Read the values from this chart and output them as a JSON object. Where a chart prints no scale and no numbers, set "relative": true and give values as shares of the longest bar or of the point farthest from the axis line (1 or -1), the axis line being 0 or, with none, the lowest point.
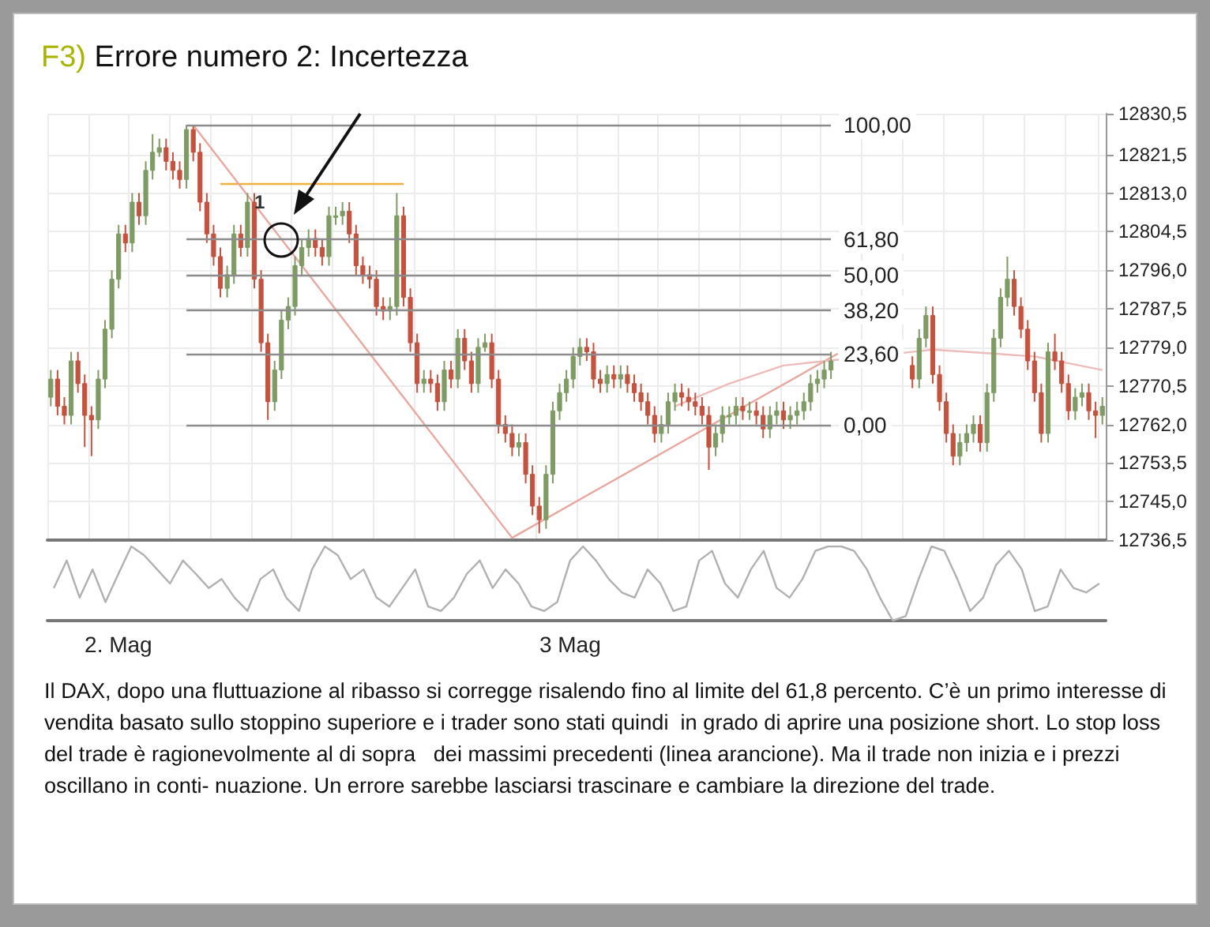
{
  "chart_data": [
    {
      "type": "candlestick",
      "title": "F3) Errore numero 2: Incertezza",
      "tick_labels": "y",
      "grid": true,
      "marker": "none",
      "categories": [
        null,
        null,
        null,
        null,
        null,
        null,
        null,
        null,
        null,
        null,
        null,
        null,
        null,
        null,
        null,
        null,
        null,
        null,
        null,
        null,
        null,
        null,
        null,
        null,
        null,
        null,
        null,
        null,
        null,
        null,
        null,
        null,
        null,
        null,
        null,
        null,
        null,
        null,
        null,
        null,
        null,
        null,
        null,
        null,
        null,
        null,
        null,
        null,
        null,
        null,
        null,
        null,
        null,
        null,
        null,
        null,
        null,
        null,
        null,
        null,
        null,
        null,
        null,
        null,
        null,
        null,
        null,
        null,
        null,
        null,
        null,
        null,
        null,
        null,
        null,
        null,
        null,
        null,
        null,
        null,
        null,
        null,
        null,
        null,
        null,
        null,
        null,
        null,
        null,
        null,
        null,
        null,
        null,
        null,
        null,
        null,
        null,
        null,
        null,
        null,
        null,
        null,
        null,
        null,
        null,
        null,
        null,
        null,
        null,
        null,
        null,
        null,
        null,
        null,
        null,
        null,
        null,
        null,
        null,
        null,
        null,
        null,
        null,
        null,
        null,
        null,
        null,
        null,
        null,
        null,
        null,
        null,
        null,
        null,
        null,
        null,
        null,
        null,
        null,
        null,
        null,
        null,
        null,
        null,
        null,
        null,
        null,
        null,
        null,
        null,
        null,
        null,
        null,
        null,
        null,
        null
      ],
      "ylim": [
        12736.5,
        12830.5
      ],
      "yticks": [
        {
          "value": 12830.5,
          "label": "12830,5"
        },
        {
          "value": 12821.5,
          "label": "12821,5"
        },
        {
          "value": 12813,
          "label": "12813,0"
        },
        {
          "value": 12804.5,
          "label": "12804,5"
        },
        {
          "value": 12796,
          "label": "12796,0"
        },
        {
          "value": 12787.5,
          "label": "12787,5"
        },
        {
          "value": 12779,
          "label": "12779,0"
        },
        {
          "value": 12770.5,
          "label": "12770,5"
        },
        {
          "value": 12762,
          "label": "12762,0"
        },
        {
          "value": 12753.5,
          "label": "12753,5"
        },
        {
          "value": 12745,
          "label": "12745,0"
        },
        {
          "value": 12736.5,
          "label": "12736,5"
        }
      ],
      "y2lim": [
        -38.6,
        103.8
      ],
      "ref_lines": [
        {
          "axis": "y2",
          "value": 100,
          "label": "100,00",
          "color": "#8c8c8c"
        },
        {
          "axis": "y2",
          "value": 61.8,
          "label": "61,80",
          "color": "#8c8c8c"
        },
        {
          "axis": "y2",
          "value": 50,
          "label": "50,00",
          "color": "#8c8c8c"
        },
        {
          "axis": "y2",
          "value": 38.2,
          "label": "38,20",
          "color": "#8c8c8c"
        },
        {
          "axis": "y2",
          "value": 23.6,
          "label": "23,60",
          "color": "#8c8c8c"
        },
        {
          "axis": "y2",
          "value": 0,
          "label": "0,00",
          "color": "#8c8c8c"
        }
      ],
      "annotations": [
        "1",
        "Il DAX, dopo una fluttuazione al ribasso si corregge risalendo fino al limite del 61,8 percento. C’è un primo interesse di vendita basato sullo stoppino superiore e i trader sono stati quindi  in grado di aprire una posizione short. Lo stop loss del trade è ragionevolmente al di sopra   dei massimi precedenti (linea arancione). Ma il trade non inizia e i prezzi oscillano in conti- nuazione. Un errore sarebbe lasciarsi trascinare e cambiare la direzione del trade."
      ],
      "series": [
        {
          "type": "candlestick",
          "colors": [
            "#7d9b63",
            "#c3523f",
            "#c3523f",
            "#7d9b63",
            "#c3523f",
            "#c3523f",
            "#c3523f",
            "#7d9b63",
            "#7d9b63",
            "#7d9b63",
            "#7d9b63",
            "#c3523f",
            "#7d9b63",
            "#c3523f",
            "#7d9b63",
            "#7d9b63",
            "#7d9b63",
            "#c3523f",
            "#c3523f",
            "#c3523f",
            "#7d9b63",
            "#c3523f",
            "#c3523f",
            "#c3523f",
            "#c3523f",
            "#c3523f",
            "#7d9b63",
            "#7d9b63",
            "#c3523f",
            "#7d9b63",
            "#c3523f",
            "#c3523f",
            "#c3523f",
            "#7d9b63",
            "#7d9b63",
            "#7d9b63",
            "#7d9b63",
            "#7d9b63",
            "#7d9b63",
            "#c3523f",
            "#c3523f",
            "#7d9b63",
            "#7d9b63",
            "#7d9b63",
            "#c3523f",
            "#c3523f",
            "#c3523f",
            "#c3523f",
            "#c3523f",
            "#c3523f",
            "#7d9b63",
            "#7d9b63",
            "#c3523f",
            "#c3523f",
            "#c3523f",
            "#7d9b63",
            "#c3523f",
            "#c3523f",
            "#7d9b63",
            "#c3523f",
            "#7d9b63",
            "#c3523f",
            "#c3523f",
            "#7d9b63",
            "#7d9b63",
            "#c3523f",
            "#c3523f",
            "#c3523f",
            "#c3523f",
            "#7d9b63",
            "#c3523f",
            "#c3523f",
            "#c3523f",
            "#7d9b63",
            "#7d9b63",
            "#7d9b63",
            "#7d9b63",
            "#7d9b63",
            "#7d9b63",
            "#c3523f",
            "#c3523f",
            "#c3523f",
            "#7d9b63",
            "#c3523f",
            "#7d9b63",
            "#c3523f",
            "#c3523f",
            "#c3523f",
            "#c3523f",
            "#c3523f",
            "#7d9b63",
            "#7d9b63",
            "#7d9b63",
            "#c3523f",
            "#c3523f",
            "#c3523f",
            "#c3523f",
            "#c3523f",
            "#7d9b63",
            "#7d9b63",
            "#7d9b63",
            "#7d9b63",
            "#c3523f",
            "#7d9b63",
            "#c3523f",
            "#c3523f",
            "#7d9b63",
            "#7d9b63",
            "#c3523f",
            "#7d9b63",
            "#7d9b63",
            "#7d9b63",
            "#7d9b63",
            "#7d9b63",
            "#7d9b63",
            "#7d9b63",
            null,
            null,
            null,
            null,
            null,
            null,
            null,
            null,
            null,
            null,
            null,
            "#c3523f",
            "#7d9b63",
            "#7d9b63",
            "#c3523f",
            "#c3523f",
            "#c3523f",
            "#c3523f",
            "#7d9b63",
            "#7d9b63",
            "#7d9b63",
            "#c3523f",
            "#7d9b63",
            "#7d9b63",
            "#7d9b63",
            "#7d9b63",
            "#c3523f",
            "#c3523f",
            "#c3523f",
            "#c3523f",
            "#c3523f",
            "#7d9b63",
            "#c3523f",
            "#c3523f",
            "#c3523f",
            "#7d9b63",
            "#7d9b63",
            "#c3523f",
            "#c3523f",
            "#7d9b63"
          ],
          "ohlc": [
            [
              12768,
              12774,
              12766,
              12772
            ],
            [
              12772,
              12774,
              12764,
              12766
            ],
            [
              12766,
              12768,
              12762,
              12764
            ],
            [
              12764,
              12778,
              12762,
              12776
            ],
            [
              12776,
              12778,
              12769,
              12771
            ],
            [
              12771,
              12773,
              12757,
              12764
            ],
            [
              12764,
              12766,
              12755,
              12763
            ],
            [
              12763,
              12774,
              12761,
              12772
            ],
            [
              12772,
              12785,
              12770,
              12783
            ],
            [
              12783,
              12796,
              12781,
              12794
            ],
            [
              12794,
              12806,
              12792,
              12804
            ],
            [
              12804,
              12806,
              12800,
              12802
            ],
            [
              12802,
              12813,
              12800,
              12811
            ],
            [
              12811,
              12813,
              12806,
              12808
            ],
            [
              12808,
              12820,
              12806,
              12818
            ],
            [
              12818,
              12826,
              12816,
              12822
            ],
            [
              12822,
              12825,
              12821,
              12823
            ],
            [
              12823,
              12825,
              12818,
              12820
            ],
            [
              12820,
              12822,
              12816,
              12818
            ],
            [
              12818,
              12820,
              12814,
              12816
            ],
            [
              12816,
              12828,
              12814,
              12827
            ],
            [
              12827,
              12828,
              12820,
              12822
            ],
            [
              12822,
              12824,
              12809,
              12811
            ],
            [
              12811,
              12813,
              12802,
              12804
            ],
            [
              12804,
              12806,
              12797,
              12799
            ],
            [
              12799,
              12801,
              12790,
              12792
            ],
            [
              12792,
              12797,
              12790,
              12795
            ],
            [
              12795,
              12806,
              12793,
              12804
            ],
            [
              12804,
              12806,
              12799,
              12801
            ],
            [
              12801,
              12813,
              12799,
              12811
            ],
            [
              12811,
              12813,
              12792,
              12794
            ],
            [
              12794,
              12796,
              12778,
              12780
            ],
            [
              12780,
              12782,
              12763,
              12767
            ],
            [
              12767,
              12776,
              12765,
              12774
            ],
            [
              12774,
              12787,
              12772,
              12785
            ],
            [
              12785,
              12790,
              12783,
              12788
            ],
            [
              12788,
              12799,
              12786,
              12797
            ],
            [
              12797,
              12803,
              12795,
              12801
            ],
            [
              12801,
              12805,
              12799,
              12803
            ],
            [
              12803,
              12805,
              12799,
              12801
            ],
            [
              12801,
              12803,
              12797,
              12799
            ],
            [
              12799,
              12810,
              12797,
              12808
            ],
            [
              12808,
              12810,
              12806,
              12808
            ],
            [
              12808,
              12811,
              12806,
              12809
            ],
            [
              12809,
              12811,
              12802,
              12804
            ],
            [
              12804,
              12806,
              12795,
              12797
            ],
            [
              12797,
              12799,
              12793,
              12795
            ],
            [
              12795,
              12797,
              12792,
              12794
            ],
            [
              12794,
              12796,
              12786,
              12788
            ],
            [
              12788,
              12790,
              12785,
              12787
            ],
            [
              12787,
              12790,
              12785,
              12788
            ],
            [
              12788,
              12813,
              12786,
              12808
            ],
            [
              12808,
              12810,
              12788,
              12790
            ],
            [
              12790,
              12792,
              12778,
              12780
            ],
            [
              12780,
              12782,
              12769,
              12771
            ],
            [
              12771,
              12774,
              12769,
              12772
            ],
            [
              12772,
              12774,
              12769,
              12771
            ],
            [
              12771,
              12773,
              12765,
              12767
            ],
            [
              12767,
              12776,
              12765,
              12774
            ],
            [
              12774,
              12776,
              12770,
              12772
            ],
            [
              12772,
              12783,
              12770,
              12781
            ],
            [
              12781,
              12783,
              12774,
              12776
            ],
            [
              12776,
              12778,
              12769,
              12771
            ],
            [
              12771,
              12781,
              12769,
              12779
            ],
            [
              12779,
              12782,
              12778,
              12780
            ],
            [
              12780,
              12782,
              12770,
              12772
            ],
            [
              12772,
              12774,
              12760,
              12762
            ],
            [
              12762,
              12764,
              12758,
              12760
            ],
            [
              12760,
              12762,
              12755,
              12757
            ],
            [
              12757,
              12760,
              12755,
              12758
            ],
            [
              12758,
              12760,
              12749,
              12751
            ],
            [
              12751,
              12753,
              12742,
              12744
            ],
            [
              12744,
              12746,
              12738,
              12741
            ],
            [
              12741,
              12753,
              12739,
              12751
            ],
            [
              12751,
              12767,
              12749,
              12765
            ],
            [
              12765,
              12771,
              12763,
              12769
            ],
            [
              12769,
              12774,
              12767,
              12772
            ],
            [
              12772,
              12779,
              12770,
              12777
            ],
            [
              12777,
              12781,
              12775,
              12779
            ],
            [
              12779,
              12781,
              12776,
              12778
            ],
            [
              12778,
              12780,
              12770,
              12772
            ],
            [
              12772,
              12774,
              12769,
              12771
            ],
            [
              12771,
              12775,
              12769,
              12773
            ],
            [
              12773,
              12775,
              12770,
              12772
            ],
            [
              12772,
              12775,
              12770,
              12773
            ],
            [
              12773,
              12775,
              12769,
              12771
            ],
            [
              12771,
              12773,
              12767,
              12769
            ],
            [
              12769,
              12771,
              12765,
              12767
            ],
            [
              12767,
              12769,
              12762,
              12764
            ],
            [
              12764,
              12766,
              12758,
              12760
            ],
            [
              12760,
              12764,
              12758,
              12762
            ],
            [
              12762,
              12769,
              12760,
              12767
            ],
            [
              12767,
              12771,
              12765,
              12769
            ],
            [
              12769,
              12771,
              12766,
              12768
            ],
            [
              12768,
              12770,
              12765,
              12767
            ],
            [
              12767,
              12769,
              12764,
              12766
            ],
            [
              12766,
              12768,
              12762,
              12764
            ],
            [
              12764,
              12766,
              12752,
              12757
            ],
            [
              12757,
              12762,
              12755,
              12760
            ],
            [
              12760,
              12766,
              12758,
              12764
            ],
            [
              12764,
              12766,
              12762,
              12764
            ],
            [
              12764,
              12768,
              12762,
              12766
            ],
            [
              12766,
              12768,
              12763,
              12765
            ],
            [
              12765,
              12767,
              12763,
              12765
            ],
            [
              12765,
              12767,
              12762,
              12764
            ],
            [
              12764,
              12766,
              12759,
              12761
            ],
            [
              12761,
              12766,
              12759,
              12764
            ],
            [
              12764,
              12767,
              12762,
              12765
            ],
            [
              12765,
              12767,
              12761,
              12763
            ],
            [
              12763,
              12766,
              12761,
              12764
            ],
            [
              12764,
              12767,
              12762,
              12765
            ],
            [
              12765,
              12769,
              12763,
              12767
            ],
            [
              12767,
              12773,
              12765,
              12771
            ],
            [
              12771,
              12774,
              12769,
              12772
            ],
            [
              12772,
              12776,
              12770,
              12774
            ],
            [
              12774,
              12778,
              12772,
              12776
            ],
            null,
            null,
            null,
            null,
            null,
            null,
            null,
            null,
            null,
            null,
            null,
            [
              12775,
              12777,
              12770,
              12772
            ],
            [
              12772,
              12783,
              12770,
              12781
            ],
            [
              12781,
              12788,
              12779,
              12786
            ],
            [
              12786,
              12788,
              12771,
              12773
            ],
            [
              12773,
              12775,
              12765,
              12767
            ],
            [
              12767,
              12769,
              12758,
              12760
            ],
            [
              12760,
              12762,
              12753,
              12755
            ],
            [
              12755,
              12760,
              12753,
              12758
            ],
            [
              12758,
              12762,
              12756,
              12760
            ],
            [
              12760,
              12764,
              12758,
              12762
            ],
            [
              12762,
              12764,
              12756,
              12758
            ],
            [
              12758,
              12771,
              12756,
              12769
            ],
            [
              12769,
              12783,
              12767,
              12781
            ],
            [
              12781,
              12792,
              12779,
              12790
            ],
            [
              12790,
              12799,
              12788,
              12794
            ],
            [
              12794,
              12796,
              12786,
              12788
            ],
            [
              12788,
              12790,
              12781,
              12783
            ],
            [
              12783,
              12785,
              12774,
              12776
            ],
            [
              12776,
              12778,
              12767,
              12769
            ],
            [
              12769,
              12771,
              12758,
              12760
            ],
            [
              12760,
              12780,
              12758,
              12778
            ],
            [
              12778,
              12782,
              12774,
              12776
            ],
            [
              12776,
              12778,
              12769,
              12771
            ],
            [
              12771,
              12773,
              12763,
              12765
            ],
            [
              12765,
              12770,
              12763,
              12768
            ],
            [
              12768,
              12771,
              12766,
              12769
            ],
            [
              12769,
              12771,
              12763,
              12765
            ],
            [
              12765,
              12767,
              12759,
              12764
            ],
            [
              12764,
              12768,
              12762,
              12766
            ]
          ]
        },
        {
          "type": "line",
          "color": "#f0b040",
          "values": [
            null,
            null,
            null,
            null,
            null,
            null,
            null,
            null,
            null,
            null,
            null,
            null,
            null,
            null,
            null,
            null,
            null,
            null,
            null,
            null,
            null,
            null,
            null,
            null,
            null,
            12815,
            12815,
            12815,
            12815,
            12815,
            12815,
            12815,
            12815,
            12815,
            12815,
            12815,
            12815,
            12815,
            12815,
            12815,
            12815,
            12815,
            12815,
            12815,
            12815,
            12815,
            12815,
            12815,
            12815,
            12815,
            12815,
            12815,
            12815,
            null,
            null,
            null,
            null,
            null,
            null,
            null,
            null,
            null,
            null,
            null,
            null,
            null,
            null,
            null,
            null,
            null,
            null,
            null,
            null,
            null,
            null,
            null,
            null,
            null,
            null,
            null,
            null,
            null,
            null,
            null,
            null,
            null,
            null,
            null,
            null,
            null,
            null,
            null,
            null,
            null,
            null,
            null,
            null,
            null,
            null,
            null,
            null,
            null,
            null,
            null,
            null,
            null,
            null,
            null,
            null,
            null,
            null,
            null,
            null,
            null,
            null,
            null,
            null,
            null,
            null,
            null,
            null,
            null,
            null,
            null,
            null,
            null,
            null,
            null,
            null,
            null,
            null,
            null,
            null,
            null,
            null,
            null,
            null,
            null,
            null,
            null,
            null,
            null,
            null,
            null,
            null,
            null,
            null,
            null,
            null,
            null,
            null,
            null,
            null,
            null,
            null,
            null
          ]
        },
        {
          "type": "line",
          "color": "#e8a8a0",
          "values": [
            null,
            null,
            null,
            null,
            null,
            null,
            null,
            null,
            null,
            null,
            null,
            null,
            null,
            null,
            null,
            null,
            null,
            null,
            null,
            null,
            null,
            12828,
            null,
            null,
            null,
            null,
            null,
            null,
            null,
            null,
            null,
            null,
            null,
            null,
            null,
            null,
            null,
            null,
            null,
            null,
            null,
            null,
            null,
            null,
            null,
            null,
            null,
            null,
            null,
            null,
            null,
            null,
            null,
            null,
            null,
            null,
            null,
            null,
            null,
            null,
            null,
            null,
            null,
            null,
            null,
            null,
            null,
            null,
            12737,
            null,
            null,
            null,
            null,
            null,
            null,
            null,
            null,
            null,
            null,
            null,
            null,
            null,
            null,
            null,
            null,
            null,
            null,
            null,
            null,
            null,
            null,
            null,
            null,
            null,
            null,
            null,
            null,
            null,
            null,
            null,
            null,
            null,
            null,
            null,
            null,
            null,
            null,
            null,
            null,
            null,
            null,
            null,
            null,
            null,
            null,
            null,
            12777.6,
            null,
            null,
            null,
            null,
            null,
            null,
            null,
            null,
            null,
            null,
            null,
            null,
            null,
            null,
            null,
            null,
            null,
            null,
            null,
            null,
            null,
            null,
            null,
            null,
            null,
            null,
            null,
            null,
            null,
            null,
            null,
            null,
            null,
            null,
            null,
            null,
            null,
            null,
            null
          ]
        },
        {
          "type": "line",
          "color": "#eebbbb",
          "values": [
            null,
            null,
            null,
            null,
            null,
            null,
            null,
            null,
            null,
            null,
            null,
            null,
            null,
            null,
            null,
            null,
            null,
            null,
            null,
            null,
            null,
            null,
            null,
            null,
            null,
            null,
            null,
            null,
            null,
            null,
            null,
            null,
            null,
            null,
            null,
            null,
            null,
            null,
            null,
            null,
            null,
            null,
            null,
            null,
            null,
            null,
            null,
            null,
            null,
            null,
            null,
            null,
            null,
            null,
            null,
            null,
            null,
            null,
            null,
            null,
            null,
            null,
            null,
            null,
            null,
            null,
            null,
            null,
            null,
            null,
            null,
            null,
            null,
            null,
            null,
            null,
            null,
            null,
            null,
            null,
            null,
            null,
            null,
            null,
            null,
            null,
            null,
            null,
            null,
            null,
            null,
            null,
            12766,
            null,
            null,
            null,
            null,
            null,
            null,
            null,
            12771,
            null,
            null,
            null,
            null,
            null,
            null,
            null,
            12775,
            null,
            null,
            null,
            null,
            null,
            null,
            null,
            null,
            null,
            null,
            null,
            null,
            null,
            null,
            null,
            null,
            null,
            null,
            12778,
            null,
            null,
            12778.5,
            null,
            null,
            null,
            null,
            null,
            null,
            null,
            null,
            null,
            null,
            null,
            null,
            null,
            null,
            12777,
            null,
            null,
            null,
            null,
            null,
            null,
            null,
            null,
            null,
            12774
          ]
        }
      ]
    },
    {
      "type": "line",
      "relative": true,
      "tick_labels": "x",
      "marker": "none",
      "categories": [
        null,
        null,
        null,
        null,
        null,
        "2. Mag",
        null,
        null,
        null,
        null,
        null,
        null,
        null,
        null,
        null,
        null,
        null,
        null,
        null,
        null,
        null,
        null,
        null,
        null,
        null,
        null,
        null,
        null,
        null,
        null,
        null,
        null,
        null,
        null,
        null,
        null,
        null,
        null,
        null,
        null,
        "3 Mag",
        null,
        null,
        null,
        null,
        null,
        null,
        null,
        null,
        null,
        null,
        null,
        null,
        null,
        null,
        null,
        null,
        null,
        null,
        null,
        null,
        null,
        null,
        null,
        null,
        null,
        null,
        null,
        null,
        null,
        null,
        null,
        null,
        null,
        null,
        null,
        null,
        null,
        null,
        null,
        null,
        null
      ],
      "series": [
        {
          "color": "#b0b0b0",
          "values": [
            0.44,
            0.81,
            0.31,
            0.69,
            0.25,
            0.63,
            1,
            0.88,
            0.69,
            0.5,
            0.81,
            0.63,
            0.44,
            0.56,
            0.31,
            0.13,
            0.56,
            0.69,
            0.31,
            0.13,
            0.69,
            1,
            0.88,
            0.56,
            0.69,
            0.31,
            0.19,
            0.44,
            0.69,
            0.19,
            0.13,
            0.31,
            0.63,
            0.81,
            0.44,
            0.69,
            0.5,
            0.19,
            0.13,
            0.25,
            0.81,
            1,
            0.81,
            0.56,
            0.38,
            0.31,
            0.69,
            0.5,
            0.13,
            0.19,
            0.81,
            0.94,
            0.5,
            0.31,
            0.69,
            0.94,
            0.44,
            0.31,
            0.56,
            0.94,
            1,
            1,
            0.94,
            0.69,
            0.31,
            0,
            0.06,
            0.56,
            1,
            0.94,
            0.56,
            0.13,
            0.31,
            0.75,
            0.94,
            0.69,
            0.13,
            0.19,
            0.69,
            0.44,
            0.38,
            0.5
          ]
        }
      ]
    }
  ]
}
